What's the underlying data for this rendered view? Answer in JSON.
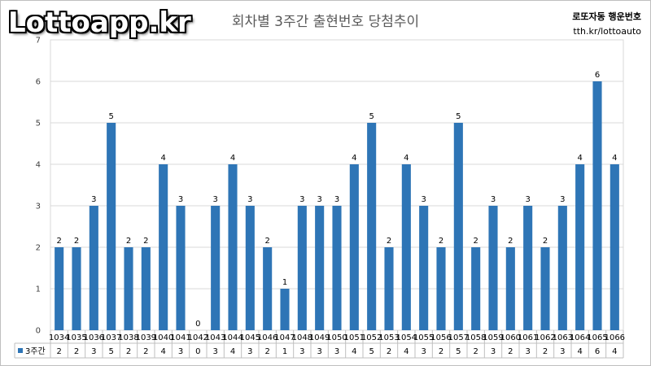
{
  "logo": "Lottoapp.kr",
  "brand": {
    "line1": "로또자동 행운번호",
    "line2": "tth.kr/lottoauto"
  },
  "chart_data": {
    "type": "bar",
    "title": "회차별 3주간 출현번호 당첨추이",
    "categories": [
      "1034",
      "1035",
      "1036",
      "1037",
      "1038",
      "1039",
      "1040",
      "1041",
      "1042",
      "1043",
      "1044",
      "1045",
      "1046",
      "1047",
      "1048",
      "1049",
      "1050",
      "1051",
      "1052",
      "1053",
      "1054",
      "1055",
      "1056",
      "1057",
      "1058",
      "1059",
      "1060",
      "1061",
      "1062",
      "1063",
      "1064",
      "1065",
      "1066"
    ],
    "series": [
      {
        "name": "3주간",
        "values": [
          2,
          2,
          3,
          5,
          2,
          2,
          4,
          3,
          0,
          3,
          4,
          3,
          2,
          1,
          3,
          3,
          3,
          4,
          5,
          2,
          4,
          3,
          2,
          5,
          2,
          3,
          2,
          3,
          2,
          3,
          4,
          6,
          4
        ]
      }
    ],
    "ylim": [
      0,
      7
    ],
    "yticks": [
      0,
      1,
      2,
      3,
      4,
      5,
      6,
      7
    ],
    "grid": true,
    "data_labels": true,
    "data_table": true,
    "bar_color": "#2e75b6"
  }
}
